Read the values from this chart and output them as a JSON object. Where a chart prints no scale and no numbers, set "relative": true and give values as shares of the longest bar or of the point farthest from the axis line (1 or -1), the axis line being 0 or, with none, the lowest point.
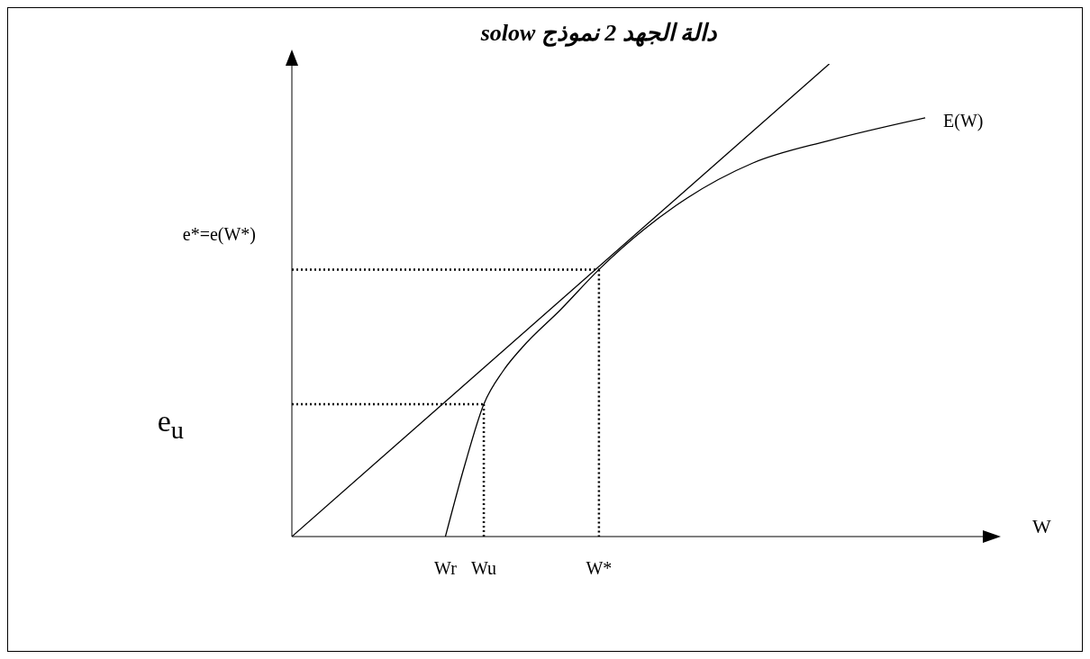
{
  "chart_data": {
    "type": "line",
    "title": "دالة الجهد 2 نموذج solow",
    "xlabel": "W",
    "relative": true,
    "legend": false,
    "grid": false,
    "marker": "none",
    "categories": [
      null,
      null,
      null,
      null,
      null,
      null,
      null,
      null,
      "Wr",
      null,
      "Wu",
      null,
      null,
      null,
      null,
      null,
      "W*",
      null,
      null,
      null,
      null,
      null,
      null,
      null,
      null,
      null,
      null,
      null,
      null,
      null,
      null,
      null,
      null,
      null,
      null,
      null,
      null
    ],
    "annotations": [
      "e*=e(W*)",
      "e$_{u}$"
    ],
    "series": [
      {
        "color": "#000000",
        "line_style": "solid",
        "values": [
          0,
          null,
          null,
          null,
          null,
          null,
          null,
          null,
          null,
          null,
          null,
          null,
          null,
          null,
          null,
          null,
          null,
          null,
          null,
          null,
          null,
          null,
          null,
          null,
          null,
          null,
          null,
          null,
          1,
          null,
          null,
          null,
          null,
          null,
          null,
          null,
          null
        ]
      },
      {
        "name": "E(W)",
        "color": "#000000",
        "line_style": "solid",
        "values": [
          null,
          null,
          null,
          null,
          null,
          null,
          null,
          null,
          0,
          0.15,
          0.28,
          0.35,
          0.4,
          null,
          0.48,
          null,
          0.565,
          null,
          null,
          null,
          0.7,
          null,
          null,
          null,
          0.79,
          null,
          null,
          null,
          0.838,
          null,
          null,
          null,
          null,
          0.886,
          null,
          null,
          null
        ]
      },
      {
        "color": "#000000",
        "line_style": "dotted",
        "values": [
          0.565,
          null,
          null,
          null,
          null,
          null,
          null,
          null,
          null,
          null,
          null,
          null,
          null,
          null,
          null,
          null,
          0.565,
          null,
          null,
          null,
          null,
          null,
          null,
          null,
          null,
          null,
          null,
          null,
          null,
          null,
          null,
          null,
          null,
          null,
          null,
          null,
          null
        ]
      },
      {
        "color": "#000000",
        "line_style": "dotted",
        "x": [
          "W*",
          "W*"
        ],
        "values": [
          0.565,
          0
        ]
      },
      {
        "color": "#000000",
        "line_style": "dotted",
        "values": [
          0.28,
          null,
          null,
          null,
          null,
          null,
          null,
          null,
          null,
          null,
          0.28,
          null,
          null,
          null,
          null,
          null,
          null,
          null,
          null,
          null,
          null,
          null,
          null,
          null,
          null,
          null,
          null,
          null,
          null,
          null,
          null,
          null,
          null,
          null,
          null,
          null,
          null
        ]
      },
      {
        "color": "#000000",
        "line_style": "dotted",
        "x": [
          "Wu",
          "Wu"
        ],
        "values": [
          0.28,
          0
        ]
      }
    ]
  }
}
